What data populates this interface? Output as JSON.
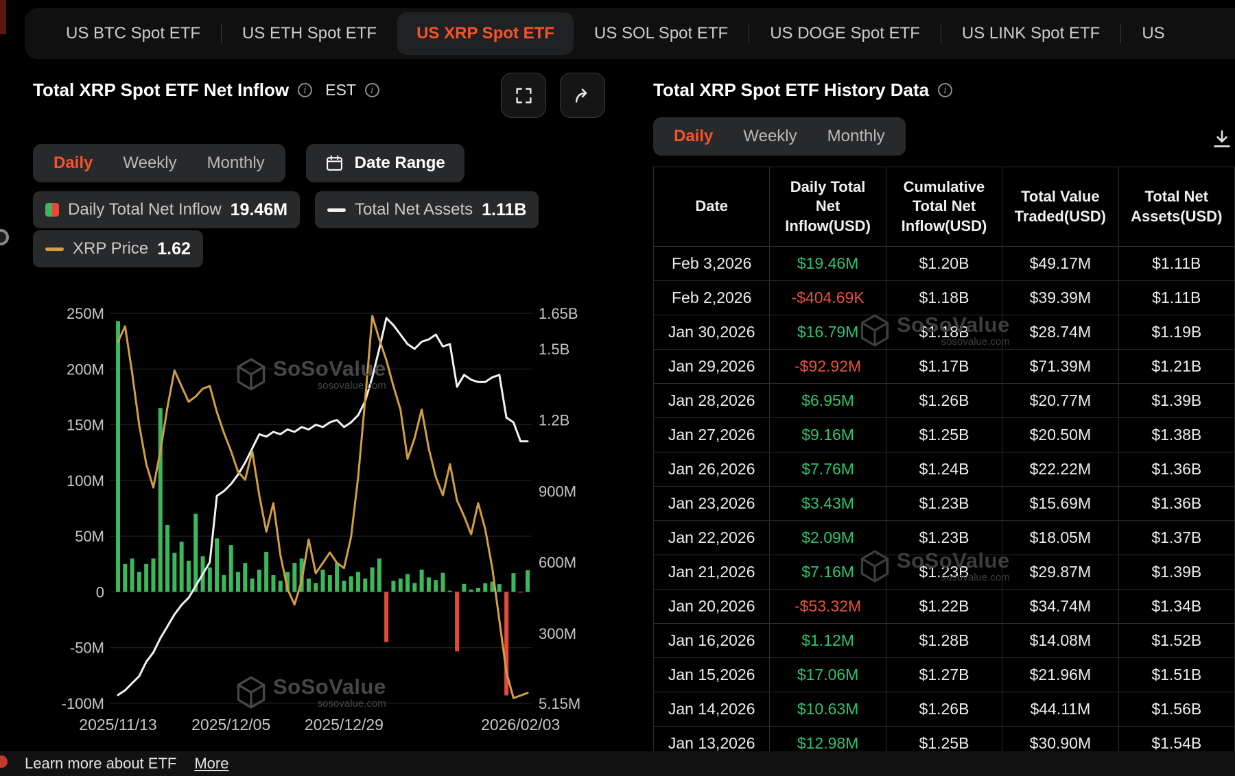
{
  "tabs": [
    {
      "label": "US BTC Spot ETF",
      "active": false
    },
    {
      "label": "US ETH Spot ETF",
      "active": false
    },
    {
      "label": "US XRP Spot ETF",
      "active": true
    },
    {
      "label": "US SOL Spot ETF",
      "active": false
    },
    {
      "label": "US DOGE Spot ETF",
      "active": false
    },
    {
      "label": "US LINK Spot ETF",
      "active": false
    },
    {
      "label": "US",
      "active": false
    }
  ],
  "chart_panel": {
    "title": "Total XRP Spot ETF Net Inflow",
    "est_label": "EST",
    "periods": [
      "Daily",
      "Weekly",
      "Monthly"
    ],
    "active_period": "Daily",
    "date_range_label": "Date Range",
    "legend": [
      {
        "label": "Daily Total Net Inflow",
        "value": "19.46M"
      },
      {
        "label": "Total Net Assets",
        "value": "1.11B"
      },
      {
        "label": "XRP Price",
        "value": "1.62"
      }
    ]
  },
  "chart_data": {
    "type": "combo",
    "title": "Total XRP Spot ETF Net Inflow",
    "x_ticks": [
      {
        "label": "2025/11/13",
        "index": 0
      },
      {
        "label": "2025/12/05",
        "index": 16
      },
      {
        "label": "2025/12/29",
        "index": 32
      },
      {
        "label": "2026/02/03",
        "index": 57
      }
    ],
    "left_axis": {
      "unit": "USD net inflow",
      "ticks": [
        {
          "label": "250M",
          "value": 250
        },
        {
          "label": "200M",
          "value": 200
        },
        {
          "label": "150M",
          "value": 150
        },
        {
          "label": "100M",
          "value": 100
        },
        {
          "label": "50M",
          "value": 50
        },
        {
          "label": "0",
          "value": 0
        },
        {
          "label": "-50M",
          "value": -50
        },
        {
          "label": "-100M",
          "value": -100
        }
      ]
    },
    "right_axis": {
      "unit": "USD total net assets",
      "ticks": [
        {
          "label": "1.65B",
          "value": 1.65
        },
        {
          "label": "1.5B",
          "value": 1.5
        },
        {
          "label": "1.2B",
          "value": 1.2
        },
        {
          "label": "900M",
          "value": 0.9
        },
        {
          "label": "600M",
          "value": 0.6
        },
        {
          "label": "300M",
          "value": 0.3
        },
        {
          "label": "5.15M",
          "value": 0.00515
        }
      ]
    },
    "price_axis": {
      "min": 1.58,
      "max": 3.08
    },
    "bars": {
      "name": "Daily Total Net Inflow",
      "unit": "M USD",
      "color_pos": "#3bb75e",
      "color_neg": "#e6493a",
      "values": [
        243,
        25,
        30,
        18,
        25,
        30,
        165,
        60,
        35,
        45,
        28,
        70,
        32,
        22,
        48,
        15,
        42,
        18,
        26,
        12,
        20,
        36,
        15,
        10,
        18,
        26,
        30,
        12,
        8,
        20,
        15,
        26,
        10,
        14,
        18,
        12,
        22,
        30,
        -45,
        10,
        12,
        16,
        8,
        20,
        12.98,
        10.63,
        17.06,
        1.12,
        -53.32,
        7.16,
        2.09,
        3.43,
        7.76,
        9.16,
        6.95,
        -92.92,
        16.79,
        -0.4,
        19.46
      ]
    },
    "assets_line": {
      "name": "Total Net Assets",
      "unit": "B USD",
      "color": "#f2f2f2",
      "values": [
        0.04,
        0.06,
        0.09,
        0.12,
        0.18,
        0.22,
        0.28,
        0.33,
        0.38,
        0.42,
        0.45,
        0.5,
        0.55,
        0.6,
        0.88,
        0.9,
        0.93,
        0.97,
        1.02,
        1.08,
        1.14,
        1.13,
        1.15,
        1.14,
        1.16,
        1.15,
        1.17,
        1.16,
        1.18,
        1.17,
        1.19,
        1.2,
        1.17,
        1.19,
        1.22,
        1.28,
        1.38,
        1.5,
        1.63,
        1.6,
        1.56,
        1.52,
        1.5,
        1.53,
        1.54,
        1.56,
        1.51,
        1.52,
        1.34,
        1.39,
        1.37,
        1.36,
        1.36,
        1.38,
        1.39,
        1.21,
        1.19,
        1.11,
        1.11
      ]
    },
    "price_line": {
      "name": "XRP Price",
      "unit": "USD",
      "color": "#d29f43",
      "values": [
        2.97,
        3.03,
        2.85,
        2.65,
        2.5,
        2.41,
        2.55,
        2.72,
        2.86,
        2.8,
        2.74,
        2.76,
        2.79,
        2.8,
        2.7,
        2.62,
        2.55,
        2.47,
        2.44,
        2.55,
        2.38,
        2.24,
        2.35,
        2.15,
        2.02,
        1.96,
        2.05,
        2.21,
        2.08,
        2.12,
        2.16,
        2.12,
        2.1,
        2.22,
        2.45,
        2.75,
        3.07,
        2.98,
        2.9,
        2.8,
        2.71,
        2.52,
        2.6,
        2.71,
        2.56,
        2.45,
        2.38,
        2.5,
        2.36,
        2.3,
        2.23,
        2.35,
        2.25,
        2.1,
        1.9,
        1.7,
        1.6,
        1.61,
        1.62
      ]
    }
  },
  "table_panel": {
    "title": "Total XRP Spot ETF History Data",
    "periods": [
      "Daily",
      "Weekly",
      "Monthly"
    ],
    "active_period": "Daily",
    "columns": [
      "Date",
      "Daily Total Net Inflow(USD)",
      "Cumulative Total Net Inflow(USD)",
      "Total Value Traded(USD)",
      "Total Net Assets(USD)"
    ],
    "rows": [
      {
        "date": "Feb 3,2026",
        "inflow": "$19.46M",
        "cumulative": "$1.20B",
        "traded": "$49.17M",
        "assets": "$1.11B"
      },
      {
        "date": "Feb 2,2026",
        "inflow": "-$404.69K",
        "cumulative": "$1.18B",
        "traded": "$39.39M",
        "assets": "$1.11B"
      },
      {
        "date": "Jan 30,2026",
        "inflow": "$16.79M",
        "cumulative": "$1.18B",
        "traded": "$28.74M",
        "assets": "$1.19B"
      },
      {
        "date": "Jan 29,2026",
        "inflow": "-$92.92M",
        "cumulative": "$1.17B",
        "traded": "$71.39M",
        "assets": "$1.21B"
      },
      {
        "date": "Jan 28,2026",
        "inflow": "$6.95M",
        "cumulative": "$1.26B",
        "traded": "$20.77M",
        "assets": "$1.39B"
      },
      {
        "date": "Jan 27,2026",
        "inflow": "$9.16M",
        "cumulative": "$1.25B",
        "traded": "$20.50M",
        "assets": "$1.38B"
      },
      {
        "date": "Jan 26,2026",
        "inflow": "$7.76M",
        "cumulative": "$1.24B",
        "traded": "$22.22M",
        "assets": "$1.36B"
      },
      {
        "date": "Jan 23,2026",
        "inflow": "$3.43M",
        "cumulative": "$1.23B",
        "traded": "$15.69M",
        "assets": "$1.36B"
      },
      {
        "date": "Jan 22,2026",
        "inflow": "$2.09M",
        "cumulative": "$1.23B",
        "traded": "$18.05M",
        "assets": "$1.37B"
      },
      {
        "date": "Jan 21,2026",
        "inflow": "$7.16M",
        "cumulative": "$1.23B",
        "traded": "$29.87M",
        "assets": "$1.39B"
      },
      {
        "date": "Jan 20,2026",
        "inflow": "-$53.32M",
        "cumulative": "$1.22B",
        "traded": "$34.74M",
        "assets": "$1.34B"
      },
      {
        "date": "Jan 16,2026",
        "inflow": "$1.12M",
        "cumulative": "$1.28B",
        "traded": "$14.08M",
        "assets": "$1.52B"
      },
      {
        "date": "Jan 15,2026",
        "inflow": "$17.06M",
        "cumulative": "$1.27B",
        "traded": "$21.96M",
        "assets": "$1.51B"
      },
      {
        "date": "Jan 14,2026",
        "inflow": "$10.63M",
        "cumulative": "$1.26B",
        "traded": "$44.11M",
        "assets": "$1.56B"
      },
      {
        "date": "Jan 13,2026",
        "inflow": "$12.98M",
        "cumulative": "$1.25B",
        "traded": "$30.90M",
        "assets": "$1.54B"
      }
    ]
  },
  "footer": {
    "text": "Learn more about ETF",
    "more_label": "More"
  },
  "watermark": {
    "brand": "SoSoValue",
    "domain": "sosovalue.com"
  }
}
